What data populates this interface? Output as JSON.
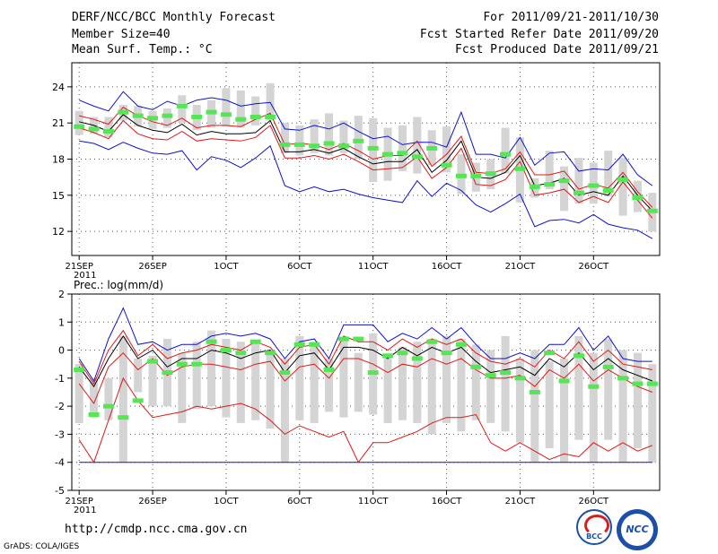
{
  "header": {
    "line1_left": "DERF/NCC/BCC Monthly Forecast",
    "line2_left": "Member Size=40",
    "line3_left": "Mean Surf. Temp.: °C",
    "line1_right": "For 2011/09/21-2011/10/30",
    "line2_right": "Fcst Started Refer Date 2011/09/20",
    "line3_right": "Fcst Produced Date 2011/09/21"
  },
  "footer": {
    "url": "http://cmdp.ncc.cma.gov.cn",
    "credit": "GrADS: COLA/IGES",
    "logo_bcc": "BCC",
    "logo_ncc": "NCC"
  },
  "colors": {
    "box": "#d4d4d4",
    "mean": "#55e655",
    "median": "#000000",
    "quartile": "#e01818",
    "extreme": "#1010d0"
  },
  "chart_data": [
    {
      "type": "box",
      "title": "Mean Surf. Temp.: °C",
      "ylim": [
        10,
        26
      ],
      "yticks": [
        12,
        15,
        18,
        21,
        24
      ],
      "xlim": [
        0.5,
        40.5
      ],
      "xtick_days": [
        1,
        6,
        11,
        16,
        21,
        26,
        31,
        36
      ],
      "xtick_labels": [
        "21SEP",
        "26SEP",
        "1OCT",
        "6OCT",
        "11OCT",
        "16OCT",
        "21OCT",
        "26OCT"
      ],
      "year_label": "2011",
      "grid": "dotted",
      "box_low": [
        20.0,
        20.1,
        19.8,
        21.2,
        20.7,
        20.5,
        20.6,
        21.0,
        20.4,
        20.6,
        20.7,
        20.6,
        20.8,
        21.2,
        18.5,
        18.3,
        18.5,
        18.3,
        18.5,
        18.0,
        16.1,
        16.2,
        17.0,
        16.8,
        17.5,
        16.9,
        15.1,
        15.3,
        15.5,
        16.8,
        14.4,
        14.8,
        15.5,
        13.7,
        14.3,
        14.3,
        14.9,
        13.3,
        13.6,
        12.0
      ],
      "box_high": [
        22.0,
        21.5,
        21.5,
        22.5,
        22.4,
        22.0,
        22.2,
        23.3,
        22.5,
        22.9,
        23.9,
        23.7,
        23.2,
        24.3,
        21.0,
        20.8,
        21.3,
        21.8,
        21.2,
        21.6,
        21.4,
        20.6,
        20.8,
        21.5,
        20.4,
        20.7,
        18.4,
        17.7,
        18.0,
        20.6,
        19.8,
        16.4,
        18.7,
        17.4,
        18.1,
        17.7,
        18.7,
        18.1,
        16.2,
        15.2
      ],
      "mean": [
        20.7,
        20.5,
        20.3,
        21.9,
        21.6,
        21.4,
        21.6,
        22.4,
        21.5,
        21.9,
        21.7,
        21.3,
        21.5,
        21.5,
        19.2,
        19.2,
        19.1,
        19.3,
        19.1,
        19.5,
        18.9,
        18.4,
        18.5,
        18.2,
        18.9,
        17.5,
        16.6,
        16.6,
        16.8,
        18.4,
        17.2,
        15.7,
        15.9,
        16.2,
        15.2,
        15.8,
        15.4,
        16.3,
        14.8,
        13.7
      ],
      "max": [
        22.9,
        22.4,
        22.0,
        23.6,
        22.4,
        22.1,
        22.8,
        22.4,
        22.9,
        23.1,
        22.9,
        22.4,
        22.6,
        22.7,
        20.5,
        20.4,
        20.8,
        20.5,
        21.0,
        20.3,
        19.7,
        19.9,
        19.2,
        19.4,
        19.4,
        19.0,
        21.9,
        18.4,
        18.4,
        18.1,
        19.8,
        17.5,
        18.5,
        18.6,
        17.0,
        17.2,
        17.1,
        18.4,
        16.7,
        15.8
      ],
      "q3": [
        21.6,
        21.3,
        20.9,
        22.3,
        21.6,
        21.1,
        20.8,
        21.4,
        20.6,
        20.8,
        20.8,
        20.7,
        21.3,
        21.8,
        19.2,
        19.3,
        19.2,
        18.8,
        19.3,
        18.7,
        18.0,
        18.3,
        18.3,
        19.5,
        17.4,
        18.4,
        19.9,
        16.9,
        16.8,
        17.2,
        18.6,
        16.7,
        16.7,
        17.0,
        15.5,
        15.9,
        15.6,
        16.9,
        15.3,
        14.0
      ],
      "median": [
        21.1,
        20.8,
        20.3,
        21.7,
        20.8,
        20.4,
        20.2,
        20.9,
        20.0,
        20.3,
        20.1,
        20.1,
        20.2,
        21.2,
        18.6,
        18.6,
        18.8,
        18.5,
        18.9,
        18.2,
        17.6,
        17.8,
        17.8,
        18.8,
        16.9,
        17.9,
        19.5,
        16.5,
        16.4,
        16.9,
        18.3,
        15.8,
        16.0,
        16.4,
        15.0,
        15.3,
        15.0,
        16.6,
        15.0,
        13.7
      ],
      "q1": [
        20.6,
        20.2,
        19.7,
        21.2,
        20.1,
        19.7,
        19.6,
        20.3,
        19.5,
        19.7,
        19.6,
        19.5,
        19.8,
        20.8,
        18.1,
        18.1,
        18.3,
        18.0,
        18.4,
        17.8,
        17.1,
        17.2,
        17.3,
        18.2,
        16.4,
        17.3,
        18.9,
        15.9,
        15.8,
        16.3,
        17.8,
        15.0,
        15.2,
        15.5,
        14.4,
        14.9,
        14.4,
        16.1,
        14.6,
        13.1
      ],
      "min": [
        19.5,
        19.3,
        18.8,
        19.4,
        18.9,
        18.5,
        18.4,
        18.7,
        17.1,
        18.2,
        17.9,
        17.3,
        18.1,
        19.1,
        15.8,
        15.3,
        15.7,
        15.3,
        15.5,
        15.1,
        14.8,
        14.6,
        14.4,
        16.2,
        14.9,
        16.0,
        15.4,
        14.2,
        13.6,
        14.3,
        15.1,
        12.4,
        12.9,
        13.0,
        12.7,
        13.4,
        12.6,
        12.3,
        12.1,
        11.4
      ]
    },
    {
      "type": "box",
      "title": "Prec.: log(mm/d)",
      "ylim": [
        -5,
        2
      ],
      "yticks": [
        -5,
        -4,
        -3,
        -2,
        -1,
        0,
        1,
        2
      ],
      "xlim": [
        0.5,
        40.5
      ],
      "xtick_days": [
        1,
        6,
        11,
        16,
        21,
        26,
        31,
        36
      ],
      "xtick_labels": [
        "21SEP",
        "26SEP",
        "1OCT",
        "6OCT",
        "11OCT",
        "16OCT",
        "21OCT",
        "26OCT"
      ],
      "year_label": "2011",
      "grid": "dotted",
      "box_low": [
        -2.6,
        -2.4,
        -2.5,
        -4.0,
        -1.5,
        -2.0,
        -2.0,
        -2.6,
        -2.1,
        -2.0,
        -2.4,
        -2.6,
        -2.5,
        -2.8,
        -4.0,
        -2.5,
        -2.6,
        -2.2,
        -2.4,
        -2.2,
        -2.3,
        -2.6,
        -2.5,
        -2.6,
        -3.0,
        -2.6,
        -2.9,
        -2.5,
        -2.6,
        -2.9,
        -3.3,
        -4.0,
        -3.5,
        -4.0,
        -3.2,
        -4.0,
        -3.2,
        -4.0,
        -3.5,
        -4.0
      ],
      "box_high": [
        -0.5,
        -1.0,
        -1.0,
        0.5,
        -0.3,
        -0.2,
        0.4,
        -0.1,
        0.3,
        0.7,
        0.4,
        0.3,
        0.3,
        0.0,
        -0.3,
        0.5,
        0.3,
        -0.3,
        0.4,
        -0.1,
        0.6,
        -0.2,
        0.1,
        0.3,
        0.4,
        0.5,
        0.4,
        0.2,
        0.0,
        0.5,
        -0.3,
        0.0,
        -0.4,
        -0.3,
        0.5,
        -0.1,
        0.4,
        0.0,
        -0.1,
        -0.5
      ],
      "mean": [
        -0.7,
        -2.3,
        -2.0,
        -2.4,
        -1.8,
        -0.4,
        -0.8,
        -0.5,
        -0.5,
        0.3,
        0.0,
        -0.1,
        0.3,
        -0.1,
        -0.8,
        0.2,
        0.2,
        -0.7,
        0.4,
        0.4,
        -0.8,
        -0.2,
        -0.1,
        -0.3,
        0.3,
        -0.1,
        0.2,
        -0.6,
        -0.9,
        -0.8,
        -1.0,
        -1.5,
        -0.1,
        -1.1,
        -0.2,
        -1.3,
        -0.6,
        -1.0,
        -1.2,
        -1.2
      ],
      "max": [
        -0.3,
        -1.1,
        0.4,
        1.5,
        0.2,
        0.3,
        0.0,
        0.2,
        0.2,
        0.5,
        0.6,
        0.5,
        0.6,
        0.4,
        -0.3,
        0.3,
        0.4,
        -0.3,
        0.9,
        0.9,
        0.9,
        0.3,
        0.6,
        0.4,
        0.8,
        0.4,
        0.8,
        0.2,
        -0.3,
        -0.3,
        -0.1,
        -0.3,
        0.2,
        0.2,
        0.8,
        0.0,
        0.5,
        -0.3,
        -0.4,
        -0.4
      ],
      "q3": [
        -0.4,
        -1.2,
        0.0,
        0.7,
        -0.2,
        0.2,
        -0.3,
        -0.1,
        0.0,
        0.2,
        0.1,
        0.0,
        0.3,
        0.1,
        -0.5,
        0.1,
        0.2,
        -0.5,
        0.5,
        0.3,
        0.3,
        0.0,
        0.4,
        0.1,
        0.4,
        0.2,
        0.4,
        -0.1,
        -0.4,
        -0.5,
        -0.3,
        -0.6,
        0.0,
        -0.3,
        0.3,
        -0.4,
        0.0,
        -0.5,
        -0.6,
        -0.7
      ],
      "median": [
        -0.6,
        -1.3,
        -0.3,
        0.5,
        -0.3,
        0.0,
        -0.6,
        -0.3,
        -0.3,
        0.0,
        -0.1,
        -0.3,
        -0.1,
        0.0,
        -0.8,
        -0.2,
        -0.1,
        -0.7,
        0.1,
        0.1,
        0.0,
        -0.3,
        0.1,
        -0.2,
        0.1,
        -0.1,
        0.1,
        -0.4,
        -0.8,
        -0.7,
        -0.6,
        -0.9,
        -0.3,
        -0.6,
        -0.1,
        -0.7,
        -0.3,
        -0.7,
        -0.9,
        -1.1
      ],
      "q1": [
        -1.2,
        -1.9,
        -0.6,
        -0.1,
        -0.7,
        -0.3,
        -0.9,
        -0.6,
        -0.5,
        -0.5,
        -0.6,
        -0.7,
        -0.5,
        -0.4,
        -1.1,
        -0.6,
        -0.5,
        -1.0,
        -0.3,
        -0.3,
        -0.5,
        -0.8,
        -0.5,
        -0.6,
        -0.3,
        -0.5,
        -0.3,
        -0.7,
        -1.0,
        -1.0,
        -0.9,
        -1.3,
        -0.7,
        -1.0,
        -0.5,
        -1.1,
        -0.7,
        -1.0,
        -1.3,
        -1.5
      ],
      "p10": [
        -3.2,
        -4.0,
        -2.5,
        -1.0,
        -1.8,
        -2.4,
        -2.3,
        -2.2,
        -2.0,
        -2.1,
        -2.0,
        -1.9,
        -2.1,
        -2.5,
        -3.0,
        -2.7,
        -2.9,
        -3.1,
        -2.9,
        -4.0,
        -3.3,
        -3.3,
        -3.1,
        -2.9,
        -2.6,
        -2.4,
        -2.4,
        -2.3,
        -3.3,
        -3.6,
        -3.3,
        -3.6,
        -3.9,
        -3.7,
        -3.8,
        -3.3,
        -3.6,
        -3.3,
        -3.6,
        -3.4
      ],
      "min": [
        -4.0,
        -4.0,
        -4.0,
        -4.0,
        -4.0,
        -4.0,
        -4.0,
        -4.0,
        -4.0,
        -4.0,
        -4.0,
        -4.0,
        -4.0,
        -4.0,
        -4.0,
        -4.0,
        -4.0,
        -4.0,
        -4.0,
        -4.0,
        -4.0,
        -4.0,
        -4.0,
        -4.0,
        -4.0,
        -4.0,
        -4.0,
        -4.0,
        -4.0,
        -4.0,
        -4.0,
        -4.0,
        -4.0,
        -4.0,
        -4.0,
        -4.0,
        -4.0,
        -4.0,
        -4.0,
        -4.0
      ]
    }
  ]
}
